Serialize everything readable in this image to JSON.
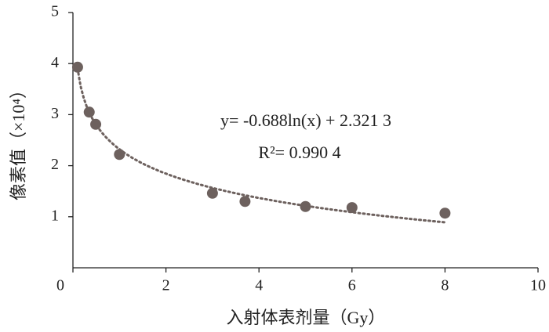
{
  "chart_data": {
    "type": "scatter",
    "x_label": "入射体表剂量（Gy）",
    "y_label": "像素值（×10⁴）",
    "series": [
      {
        "color": "#6d615e",
        "x": [
          0.1,
          0.35,
          0.49,
          1.0,
          3.0,
          3.7,
          5.0,
          6.0,
          8.0
        ],
        "values": [
          3.93,
          3.05,
          2.81,
          2.22,
          1.46,
          1.3,
          1.2,
          1.18,
          1.07
        ]
      }
    ],
    "trendline": {
      "type": "log",
      "slope": -0.688,
      "intercept": 2.3213,
      "color": "#6d615e",
      "equation": "y= -0.688ln(x) + 2.321 3",
      "r_squared": "R²= 0.990 4"
    },
    "xlim": [
      0,
      10
    ],
    "xticks": [
      0,
      2,
      4,
      6,
      8,
      10
    ],
    "ylim": [
      0,
      5
    ],
    "yticks": [
      1,
      2,
      3,
      4,
      5
    ]
  }
}
